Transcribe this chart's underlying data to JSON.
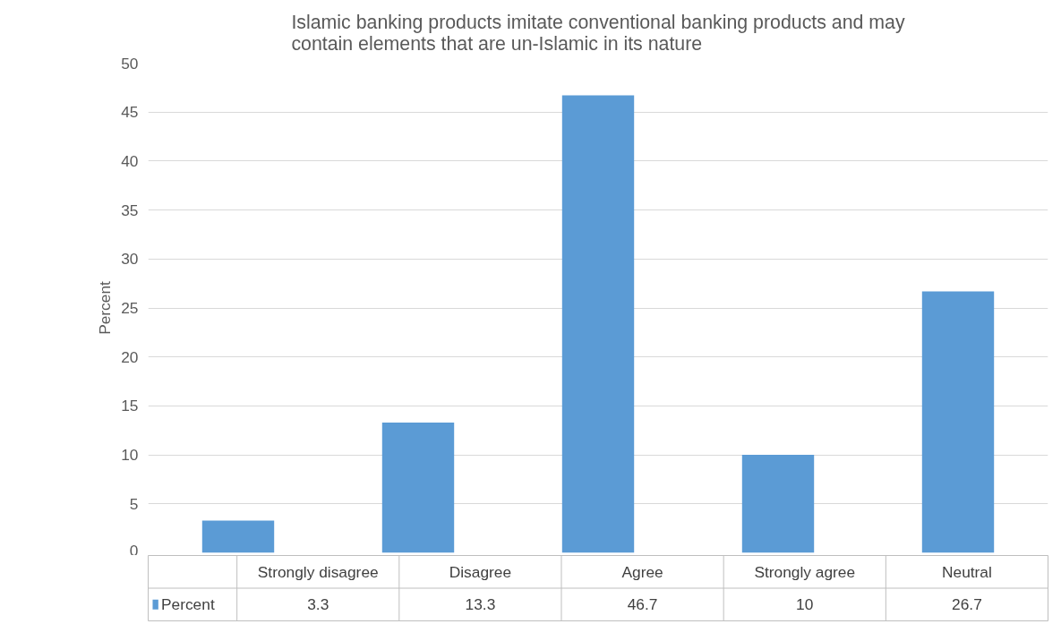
{
  "chart_data": {
    "type": "bar",
    "title": "Islamic banking products imitate conventional banking products and may contain elements that are un-Islamic in its nature",
    "ylabel": "Percent",
    "categories": [
      "Strongly disagree",
      "Disagree",
      "Agree",
      "Strongly agree",
      "Neutral"
    ],
    "series": [
      {
        "name": "Percent",
        "color": "#5b9bd5",
        "values": [
          3.3,
          13.3,
          46.7,
          10,
          26.7
        ]
      }
    ],
    "ylim": [
      0,
      50
    ],
    "yticks": [
      0,
      5,
      10,
      15,
      20,
      25,
      30,
      35,
      40,
      45,
      50
    ],
    "grid": "y",
    "legend": "bottom",
    "data_labels": true
  }
}
